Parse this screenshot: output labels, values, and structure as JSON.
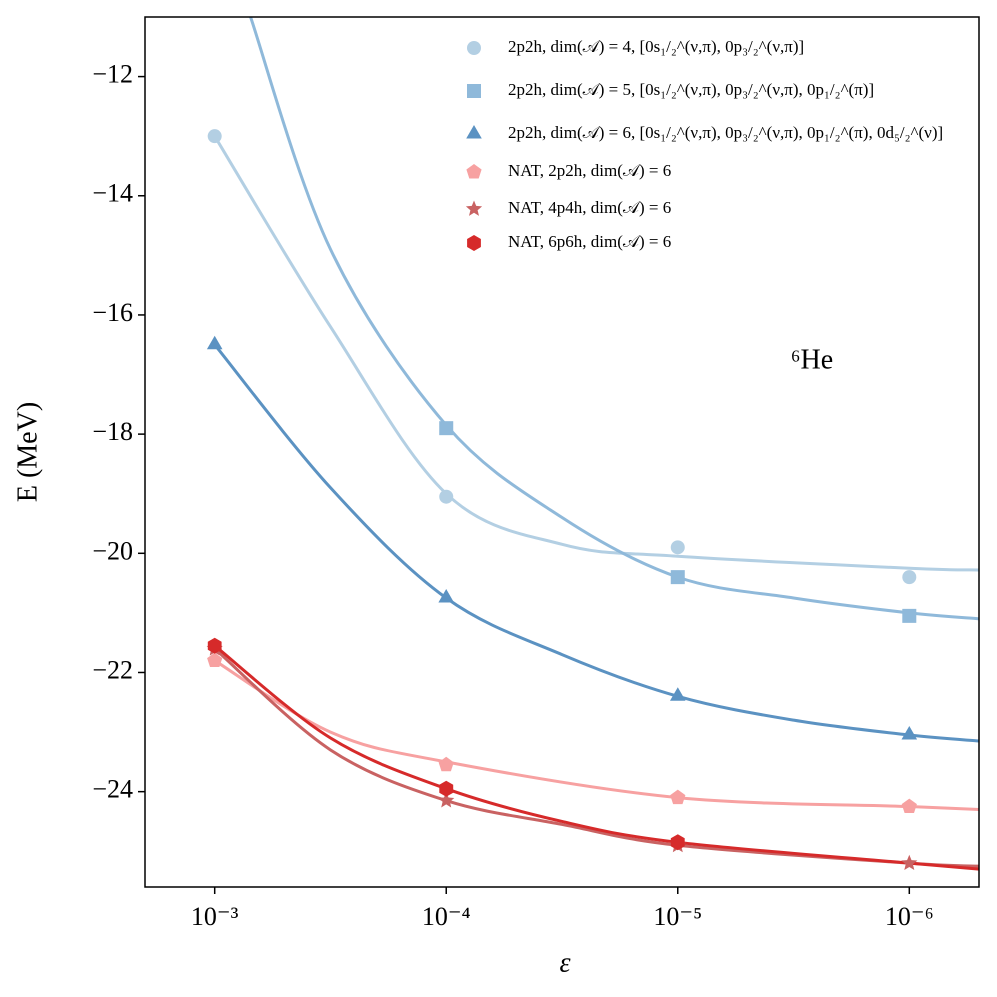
{
  "chart_data": {
    "type": "line",
    "xlabel": "ε",
    "ylabel": "E (MeV)",
    "annotation": "⁶He",
    "xscale": "log",
    "xlim": [
      0.002,
      5e-07
    ],
    "ylim": [
      -25.6,
      -11
    ],
    "xticks": [
      {
        "value": 0.001,
        "label": "10⁻³"
      },
      {
        "value": 0.0001,
        "label": "10⁻⁴"
      },
      {
        "value": 1e-05,
        "label": "10⁻⁵"
      },
      {
        "value": 1e-06,
        "label": "10⁻⁶"
      }
    ],
    "yticks": [
      {
        "value": -12,
        "label": "−12"
      },
      {
        "value": -14,
        "label": "−14"
      },
      {
        "value": -16,
        "label": "−16"
      },
      {
        "value": -18,
        "label": "−18"
      },
      {
        "value": -20,
        "label": "−20"
      },
      {
        "value": -22,
        "label": "−22"
      },
      {
        "value": -24,
        "label": "−24"
      }
    ],
    "x": [
      0.001,
      0.0001,
      1e-05,
      1e-06
    ],
    "series": [
      {
        "name": "2p2h, dim(𝒜) = 4, [0s₁/₂^(ν,π), 0p₃/₂^(ν,π)]",
        "color": "#b3cfe3",
        "marker": "circle",
        "values": [
          -13.0,
          -19.05,
          -19.9,
          -20.4
        ],
        "fit_x": [
          0.001,
          0.000316,
          0.0001,
          3.16e-05,
          1e-05,
          1e-06,
          5e-07
        ],
        "fit_values": [
          -13.0,
          -16.2,
          -19.0,
          -19.85,
          -20.05,
          -20.25,
          -20.28
        ]
      },
      {
        "name": "2p2h, dim(𝒜) = 5, [0s₁/₂^(ν,π), 0p₃/₂^(ν,π), 0p₁/₂^(π)]",
        "color": "#8fb9da",
        "marker": "square",
        "values": [
          null,
          -17.9,
          -20.4,
          -21.05
        ],
        "fit_x": [
          0.0007,
          0.000316,
          0.0001,
          3.16e-05,
          1e-05,
          3.16e-06,
          1e-06,
          5e-07
        ],
        "fit_values": [
          -11.0,
          -14.9,
          -17.85,
          -19.4,
          -20.4,
          -20.75,
          -21.0,
          -21.1
        ]
      },
      {
        "name": "2p2h, dim(𝒜) = 6, [0s₁/₂^(ν,π), 0p₃/₂^(ν,π), 0p₁/₂^(π), 0d₅/₂^(ν)]",
        "color": "#5b92c2",
        "marker": "triangle",
        "values": [
          -16.5,
          -20.75,
          -22.4,
          -23.05
        ],
        "fit_x": [
          0.001,
          0.000316,
          0.0001,
          3.16e-05,
          1e-05,
          3.16e-06,
          1e-06,
          5e-07
        ],
        "fit_values": [
          -16.5,
          -18.9,
          -20.75,
          -21.7,
          -22.4,
          -22.8,
          -23.05,
          -23.15
        ]
      },
      {
        "name": "NAT, 2p2h, dim(𝒜) = 6",
        "color": "#f7a1a1",
        "marker": "pentagon",
        "values": [
          -21.8,
          -23.55,
          -24.1,
          -24.25
        ],
        "fit_x": [
          0.001,
          0.000316,
          0.0001,
          1e-05,
          1e-06,
          5e-07
        ],
        "fit_values": [
          -21.8,
          -23.0,
          -23.5,
          -24.1,
          -24.25,
          -24.3
        ]
      },
      {
        "name": "NAT, 4p4h, dim(𝒜) = 6",
        "color": "#c96262",
        "marker": "star",
        "values": [
          -21.6,
          -24.15,
          -24.9,
          -25.2
        ],
        "fit_x": [
          0.001,
          0.000316,
          0.0001,
          3.16e-05,
          1e-05,
          1e-06,
          5e-07
        ],
        "fit_values": [
          -21.6,
          -23.3,
          -24.15,
          -24.55,
          -24.9,
          -25.2,
          -25.25
        ]
      },
      {
        "name": "NAT, 6p6h, dim(𝒜) = 6",
        "color": "#d62a2a",
        "marker": "hexagon",
        "values": [
          -21.55,
          -23.95,
          -24.85,
          null
        ],
        "fit_x": [
          0.001,
          0.000316,
          0.0001,
          3.16e-05,
          1e-05,
          1e-06,
          5e-07
        ],
        "fit_values": [
          -21.55,
          -23.1,
          -23.95,
          -24.5,
          -24.85,
          -25.2,
          -25.3
        ]
      }
    ]
  }
}
